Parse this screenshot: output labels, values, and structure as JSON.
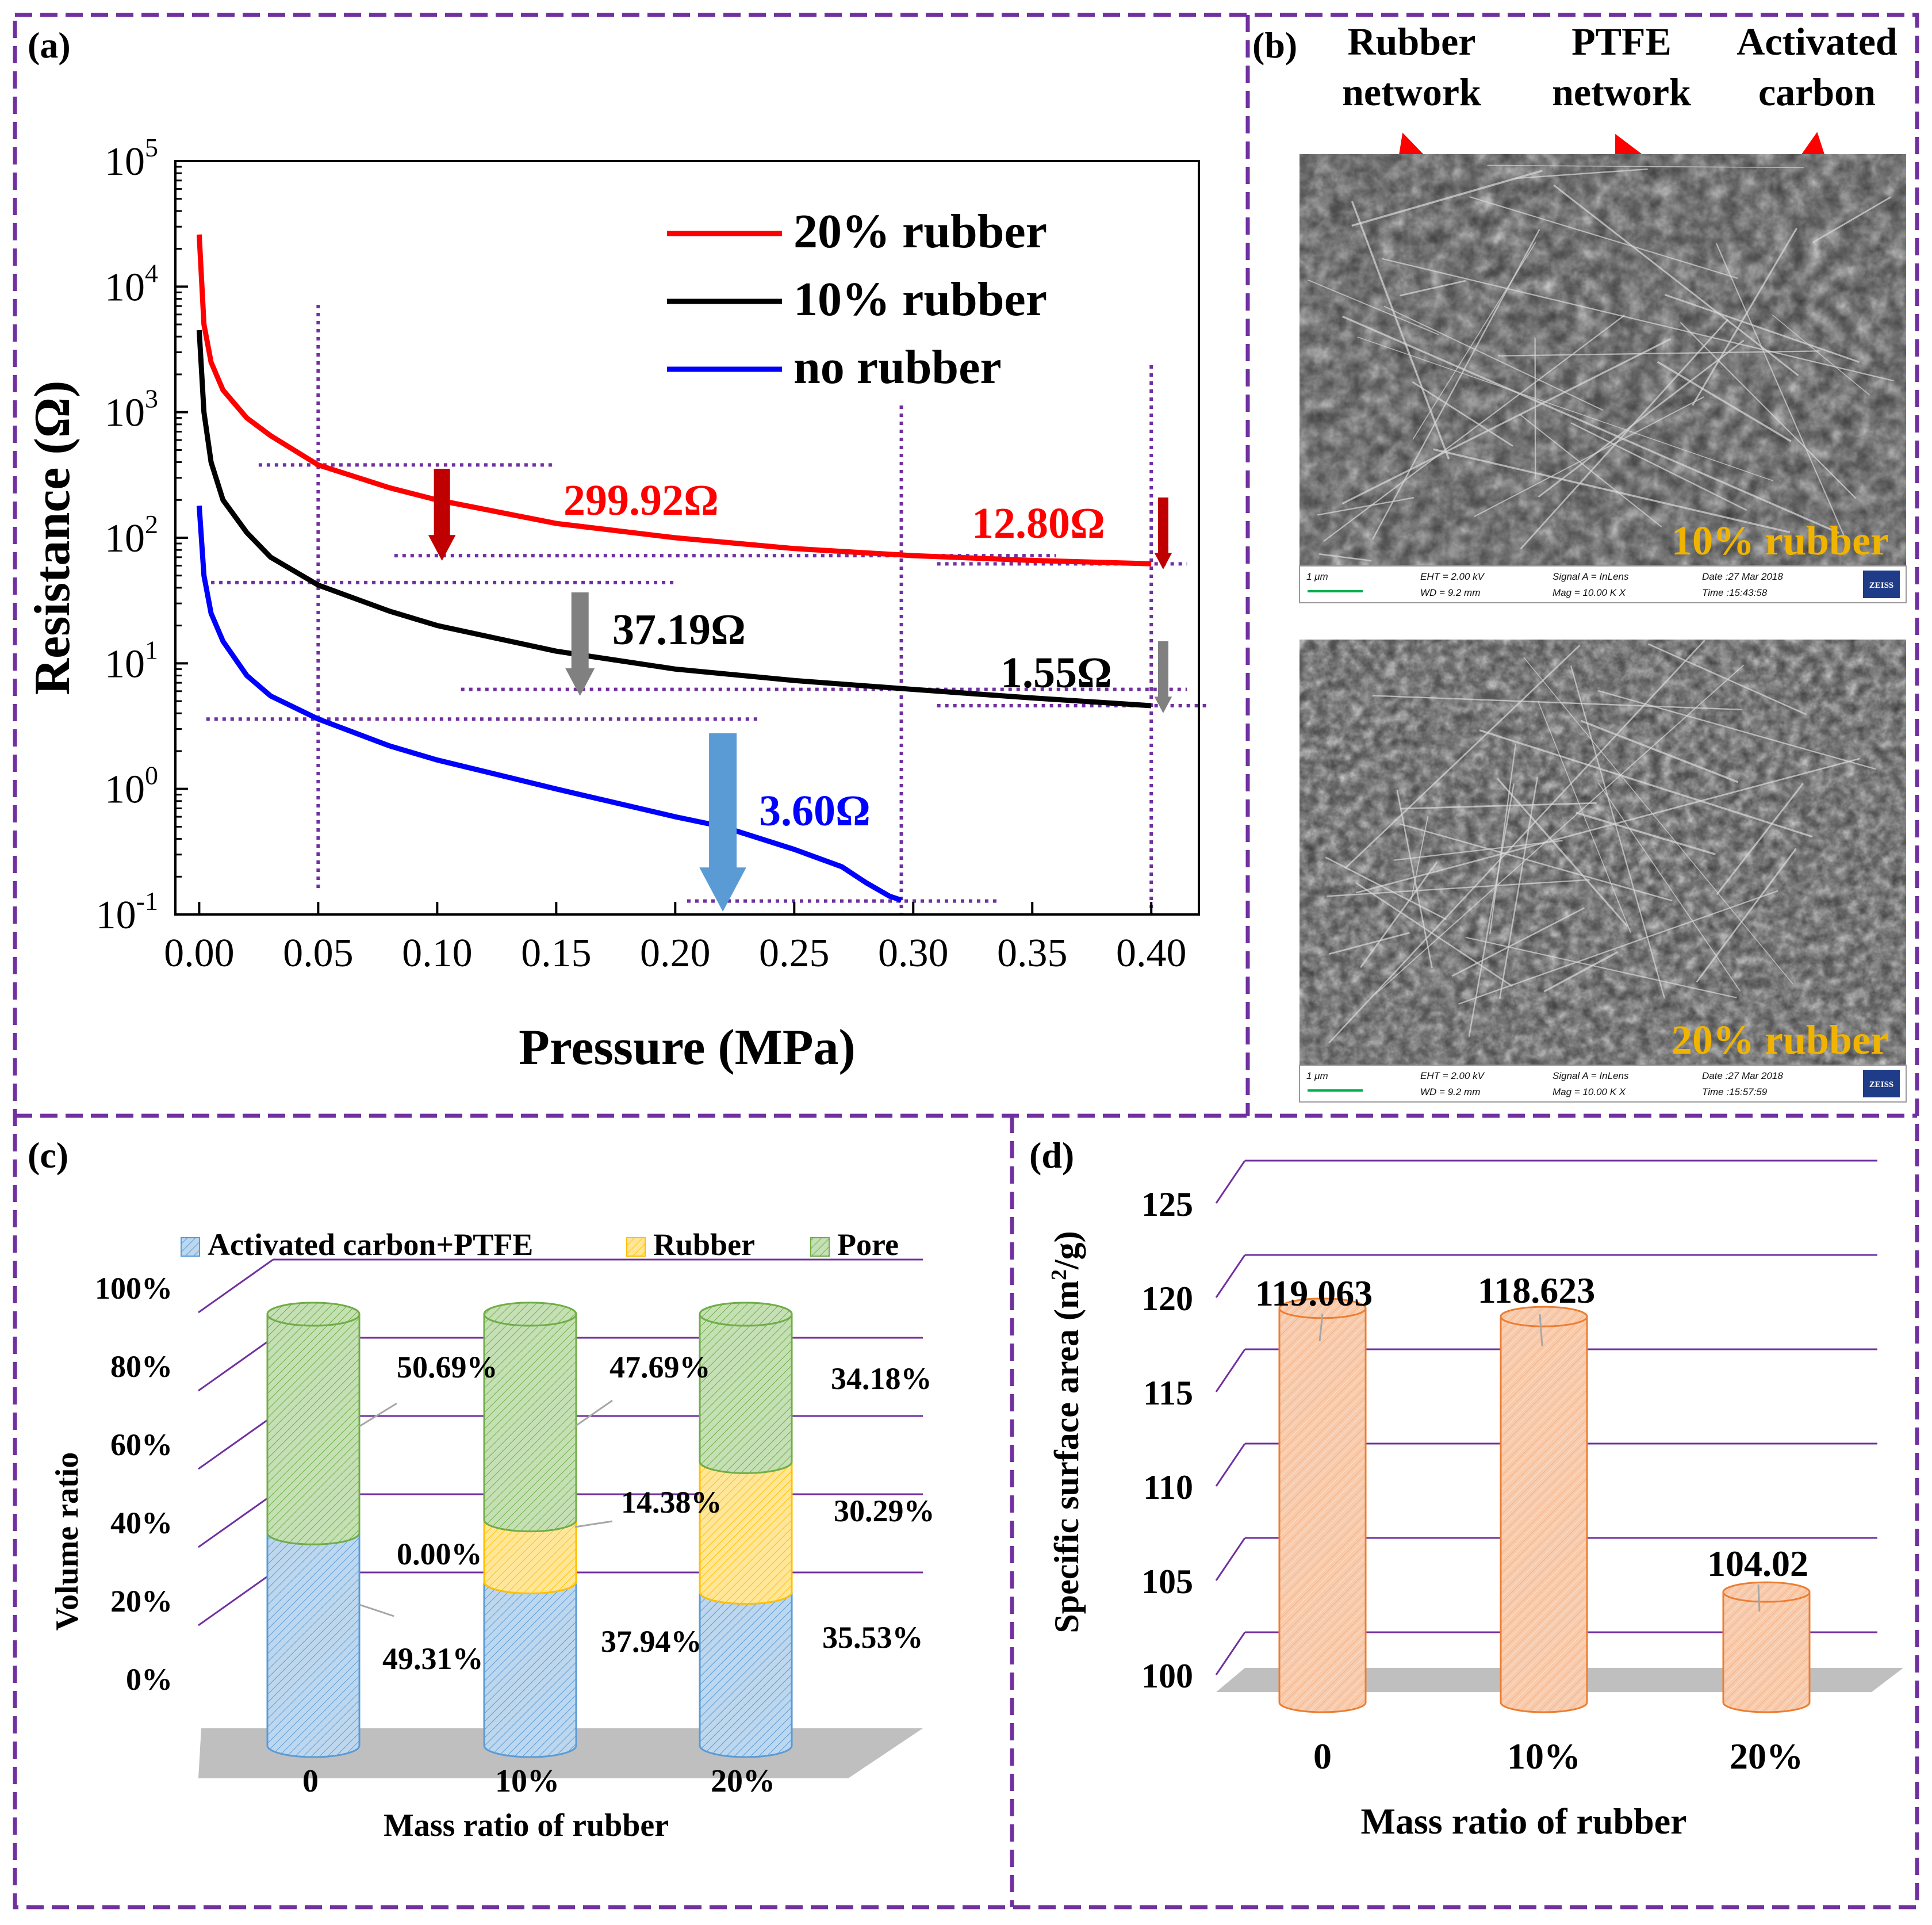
{
  "figure": {
    "border_color": "#7030a0",
    "panel_a": {
      "label": "(a)"
    },
    "panel_b": {
      "label": "(b)",
      "callouts": [
        "Rubber\nnetwork",
        "PTFE\nnetwork",
        "Activated\ncarbon"
      ],
      "callout_lines": [
        [
          "Rubber",
          "network"
        ],
        [
          "PTFE",
          "network"
        ],
        [
          "Activated",
          "carbon"
        ]
      ],
      "images": [
        {
          "caption": "10% rubber",
          "scale": "1 μm",
          "eht": "EHT = 2.00 kV",
          "wd": "WD = 9.2 mm",
          "signal": "Signal A = InLens",
          "mag": "Mag = 10.00 K X",
          "date": "Date :27 Mar 2018",
          "time": "Time :15:43:58",
          "brand": "ZEISS"
        },
        {
          "caption": "20% rubber",
          "scale": "1 μm",
          "eht": "EHT = 2.00 kV",
          "wd": "WD = 9.2 mm",
          "signal": "Signal A = InLens",
          "mag": "Mag = 10.00 K X",
          "date": "Date :27 Mar 2018",
          "time": "Time :15:57:59",
          "brand": "ZEISS"
        }
      ],
      "caption_color": "#f0b400",
      "arrow_color": "#ff0000"
    },
    "panel_c": {
      "label": "(c)"
    },
    "panel_d": {
      "label": "(d)"
    }
  },
  "chart_data": [
    {
      "id": "a",
      "type": "line",
      "xlabel": "Pressure (MPa)",
      "ylabel": "Resistance (Ω)",
      "xlim": [
        -0.01,
        0.42
      ],
      "ylim_log10": [
        -1,
        5
      ],
      "x_ticks": [
        "0.00",
        "0.05",
        "0.10",
        "0.15",
        "0.20",
        "0.25",
        "0.30",
        "0.35",
        "0.40"
      ],
      "x_tick_values": [
        0,
        0.05,
        0.1,
        0.15,
        0.2,
        0.25,
        0.3,
        0.35,
        0.4
      ],
      "y_ticks": [
        {
          "base": "10",
          "exp": "5"
        },
        {
          "base": "10",
          "exp": "4"
        },
        {
          "base": "10",
          "exp": "3"
        },
        {
          "base": "10",
          "exp": "2"
        },
        {
          "base": "10",
          "exp": "1"
        },
        {
          "base": "10",
          "exp": "0"
        },
        {
          "base": "10",
          "exp": "-1"
        }
      ],
      "y_tick_values": [
        5,
        4,
        3,
        2,
        1,
        0,
        -1
      ],
      "series": [
        {
          "name": "20% rubber",
          "color": "#ff0000",
          "x": [
            0.0,
            0.002,
            0.005,
            0.01,
            0.02,
            0.03,
            0.05,
            0.08,
            0.1,
            0.15,
            0.2,
            0.25,
            0.3,
            0.35,
            0.4
          ],
          "y": [
            26000,
            5000,
            2500,
            1500,
            900,
            650,
            380,
            250,
            200,
            130,
            100,
            82,
            72,
            66,
            62
          ]
        },
        {
          "name": "10% rubber",
          "color": "#000000",
          "x": [
            0.0,
            0.002,
            0.005,
            0.01,
            0.02,
            0.03,
            0.05,
            0.08,
            0.1,
            0.15,
            0.2,
            0.25,
            0.3,
            0.35,
            0.4
          ],
          "y": [
            4500,
            1000,
            400,
            200,
            110,
            70,
            42,
            26,
            20,
            12.5,
            9,
            7.3,
            6.2,
            5.3,
            4.6
          ]
        },
        {
          "name": "no rubber",
          "color": "#0000ff",
          "x": [
            0.0,
            0.002,
            0.005,
            0.01,
            0.02,
            0.03,
            0.05,
            0.08,
            0.1,
            0.15,
            0.2,
            0.22,
            0.25,
            0.27,
            0.28,
            0.29,
            0.295
          ],
          "y": [
            180,
            50,
            25,
            15,
            8,
            5.5,
            3.6,
            2.2,
            1.7,
            1.0,
            0.6,
            0.5,
            0.33,
            0.24,
            0.18,
            0.14,
            0.13
          ]
        }
      ],
      "annotations": [
        {
          "text": "299.92Ω",
          "color": "#ff0000"
        },
        {
          "text": "12.80Ω",
          "color": "#ff0000"
        },
        {
          "text": "37.19Ω",
          "color": "#000000"
        },
        {
          "text": "1.55Ω",
          "color": "#000000"
        },
        {
          "text": "3.60Ω",
          "color": "#0000ff"
        }
      ],
      "guide_color": "#7030a0",
      "arrow_colors": {
        "red": "#c00000",
        "gray": "#808080",
        "blue": "#5b9bd5"
      }
    },
    {
      "id": "c",
      "type": "bar",
      "stacked": true,
      "xlabel": "Mass ratio of rubber",
      "ylabel": "Volume ratio",
      "categories": [
        "0",
        "10%",
        "20%"
      ],
      "y_ticks": [
        "0%",
        "20%",
        "40%",
        "60%",
        "80%",
        "100%"
      ],
      "y_tick_values": [
        0,
        20,
        40,
        60,
        80,
        100
      ],
      "series": [
        {
          "name": "Activated carbon+PTFE",
          "color": "#bdd7ee",
          "values": [
            49.31,
            37.94,
            35.53
          ],
          "labels": [
            "49.31%",
            "37.94%",
            "35.53%"
          ]
        },
        {
          "name": "Rubber",
          "color": "#ffe699",
          "values": [
            0.0,
            14.38,
            30.29
          ],
          "labels": [
            "0.00%",
            "14.38%",
            "30.29%"
          ]
        },
        {
          "name": "Pore",
          "color": "#c5e0b4",
          "values": [
            50.69,
            47.69,
            34.18
          ],
          "labels": [
            "50.69%",
            "47.69%",
            "34.18%"
          ]
        }
      ],
      "stroke_colors": [
        "#5b9bd5",
        "#ffc000",
        "#70ad47"
      ],
      "floor_color": "#bfbfbf",
      "grid_color": "#7030a0"
    },
    {
      "id": "d",
      "type": "bar",
      "xlabel": "Mass ratio of rubber",
      "ylabel": "Specific surface area (m²/g)",
      "ylabel_parts": [
        "Specific surface area (m",
        "2",
        "/g)"
      ],
      "categories": [
        "0",
        "10%",
        "20%"
      ],
      "values": [
        119.063,
        118.623,
        104.02
      ],
      "value_labels": [
        "119.063",
        "118.623",
        "104.02"
      ],
      "ylim": [
        100,
        125
      ],
      "y_ticks": [
        "100",
        "105",
        "110",
        "115",
        "120",
        "125"
      ],
      "y_tick_values": [
        100,
        105,
        110,
        115,
        120,
        125
      ],
      "bar_color": "#f8cbad",
      "bar_stroke": "#ed7d31",
      "floor_color": "#bfbfbf",
      "grid_color": "#7030a0"
    }
  ]
}
